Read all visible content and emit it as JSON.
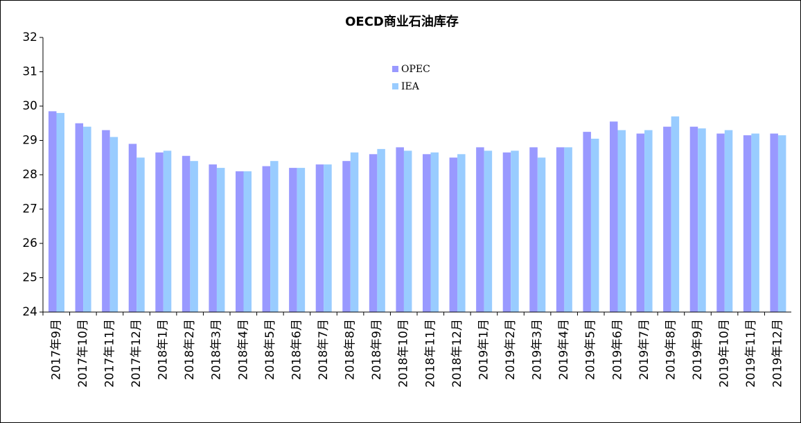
{
  "chart_data": {
    "type": "bar",
    "title": "OECD商业石油库存",
    "categories": [
      "2017年9月",
      "2017年10月",
      "2017年11月",
      "2017年12月",
      "2018年1月",
      "2018年2月",
      "2018年3月",
      "2018年4月",
      "2018年5月",
      "2018年6月",
      "2018年7月",
      "2018年8月",
      "2018年9月",
      "2018年10月",
      "2018年11月",
      "2018年12月",
      "2019年1月",
      "2019年2月",
      "2019年3月",
      "2019年4月",
      "2019年5月",
      "2019年6月",
      "2019年7月",
      "2019年8月",
      "2019年9月",
      "2019年10月",
      "2019年11月",
      "2019年12月"
    ],
    "series": [
      {
        "name": "OPEC",
        "color": "#9999ff",
        "values": [
          29.85,
          29.5,
          29.3,
          28.9,
          28.65,
          28.55,
          28.3,
          28.1,
          28.25,
          28.2,
          28.3,
          28.4,
          28.6,
          28.8,
          28.6,
          28.5,
          28.8,
          28.65,
          28.8,
          28.8,
          29.25,
          29.55,
          29.2,
          29.4,
          29.4,
          29.2,
          29.15,
          29.2
        ]
      },
      {
        "name": "IEA",
        "color": "#99ccff",
        "values": [
          29.8,
          29.4,
          29.1,
          28.5,
          28.7,
          28.4,
          28.2,
          28.1,
          28.4,
          28.2,
          28.3,
          28.65,
          28.75,
          28.7,
          28.65,
          28.6,
          28.7,
          28.7,
          28.5,
          28.8,
          29.05,
          29.3,
          29.3,
          29.7,
          29.35,
          29.3,
          29.2,
          29.15
        ]
      }
    ],
    "ylim": [
      24,
      32
    ],
    "yticks": [
      24,
      25,
      26,
      27,
      28,
      29,
      30,
      31,
      32
    ],
    "grid": false
  }
}
